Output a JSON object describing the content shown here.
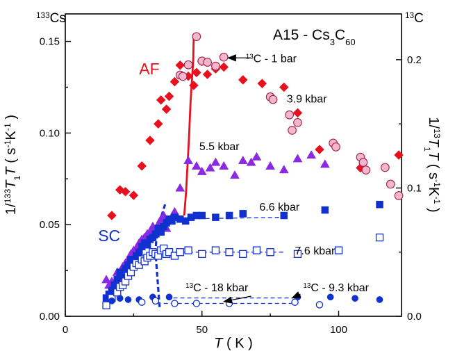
{
  "chart_data": {
    "type": "scatter",
    "title": "A15 - Cs3C60",
    "left_axis_heading": "133Cs",
    "right_axis_heading": "13C",
    "xlabel": "T ( K )",
    "ylabel_left": "1/133T1T ( s-1K-1 )",
    "ylabel_right": "1/13T1T ( s-1K-1 )",
    "xlim": [
      0,
      123
    ],
    "ylim_left": [
      0,
      0.165
    ],
    "ylim_right": [
      0,
      0.2357
    ],
    "x_ticks": [
      0,
      50,
      100
    ],
    "y_left_ticks": [
      0.0,
      0.05,
      0.1,
      0.15
    ],
    "y_left_tick_labels": [
      "0.00",
      "0.05",
      "0.10",
      "0.15"
    ],
    "y_right_ticks": [
      0.0,
      0.1,
      0.2
    ],
    "y_right_tick_labels": [
      "0.0",
      "0.1",
      "0.2"
    ],
    "region_labels": [
      {
        "text": "AF",
        "color": "#e8101e",
        "x": 27,
        "y": 0.132
      },
      {
        "text": "SC",
        "color": "#1030d0",
        "x": 12,
        "y": 0.041
      }
    ],
    "annotations": [
      {
        "text": "3.9 kbar",
        "x": 81,
        "y": 0.119
      },
      {
        "text": "5.5 kbar",
        "x": 49,
        "y": 0.093
      },
      {
        "text": "6.6 kbar",
        "x": 71,
        "y": 0.06
      },
      {
        "text": "7.6 kbar",
        "x": 84,
        "y": 0.036
      },
      {
        "text": "13C - 1 bar",
        "x": 66,
        "y": 0.141
      },
      {
        "text": "13C - 18 kbar",
        "x": 44,
        "y": 0.016
      },
      {
        "text": "13C - 9.3 kbar",
        "x": 87,
        "y": 0.016
      }
    ],
    "series": [
      {
        "name": "3.9 kbar",
        "axis": "left",
        "marker": "diamond",
        "filled": true,
        "color": "#e8101e",
        "x": [
          17,
          20,
          22,
          25,
          28,
          31,
          34,
          35,
          37,
          38,
          40,
          42,
          45,
          47,
          48,
          50,
          52,
          55,
          58,
          65,
          72,
          80,
          85,
          93,
          108,
          122
        ],
        "y": [
          0.055,
          0.069,
          0.068,
          0.066,
          0.082,
          0.096,
          0.105,
          0.118,
          0.113,
          0.12,
          0.128,
          0.137,
          0.131,
          0.126,
          0.133,
          0.139,
          0.132,
          0.135,
          0.136,
          0.129,
          0.127,
          0.125,
          0.111,
          0.091,
          0.081,
          0.088
        ]
      },
      {
        "name": "5.5 kbar",
        "axis": "left",
        "marker": "triangle",
        "filled": true,
        "color": "#8a2be2",
        "x": [
          15,
          16,
          17,
          18,
          19,
          20,
          21,
          22,
          23,
          24,
          25,
          26,
          27,
          28,
          29,
          30,
          31,
          32,
          33,
          34,
          35,
          36,
          37,
          38,
          40,
          42,
          45,
          48,
          50,
          53,
          55,
          58,
          62,
          65,
          68,
          70,
          75,
          80,
          85,
          90,
          95
        ],
        "y": [
          0.02,
          0.017,
          0.019,
          0.018,
          0.024,
          0.021,
          0.027,
          0.029,
          0.031,
          0.034,
          0.036,
          0.037,
          0.04,
          0.042,
          0.043,
          0.045,
          0.046,
          0.049,
          0.045,
          0.05,
          0.053,
          0.055,
          0.048,
          0.052,
          0.057,
          0.07,
          0.085,
          0.082,
          0.079,
          0.081,
          0.084,
          0.082,
          0.077,
          0.085,
          0.084,
          0.087,
          0.082,
          0.08,
          0.086,
          0.088,
          0.083
        ]
      },
      {
        "name": "6.6 kbar",
        "axis": "left",
        "marker": "square",
        "filled": true,
        "color": "#1030d0",
        "x": [
          15,
          16,
          17,
          18,
          19,
          20,
          21,
          22,
          23,
          24,
          25,
          26,
          27,
          28,
          29,
          30,
          31,
          32,
          33,
          34,
          35,
          36,
          37,
          38,
          39,
          40,
          42,
          44,
          46,
          48,
          50,
          55,
          60,
          65,
          80,
          95,
          115
        ],
        "y": [
          0.01,
          0.012,
          0.014,
          0.017,
          0.02,
          0.024,
          0.022,
          0.026,
          0.028,
          0.031,
          0.03,
          0.033,
          0.035,
          0.038,
          0.04,
          0.039,
          0.042,
          0.043,
          0.045,
          0.048,
          0.046,
          0.049,
          0.051,
          0.053,
          0.052,
          0.054,
          0.053,
          0.052,
          0.054,
          0.055,
          0.055,
          0.054,
          0.055,
          0.056,
          0.055,
          0.058,
          0.061
        ]
      },
      {
        "name": "7.6 kbar",
        "axis": "left",
        "marker": "square",
        "filled": false,
        "color": "#1030d0",
        "x": [
          15,
          17,
          19,
          20,
          21,
          22,
          23,
          24,
          25,
          26,
          27,
          28,
          29,
          30,
          31,
          32,
          33,
          34,
          35,
          36,
          37,
          38,
          40,
          42,
          45,
          50,
          55,
          60,
          65,
          70,
          75,
          85,
          100,
          115
        ],
        "y": [
          0.006,
          0.01,
          0.013,
          0.016,
          0.017,
          0.019,
          0.022,
          0.024,
          0.027,
          0.029,
          0.028,
          0.031,
          0.03,
          0.032,
          0.033,
          0.035,
          0.034,
          0.033,
          0.036,
          0.037,
          0.034,
          0.035,
          0.033,
          0.035,
          0.036,
          0.034,
          0.036,
          0.035,
          0.034,
          0.036,
          0.035,
          0.034,
          0.036,
          0.043
        ]
      },
      {
        "name": "13C - 1 bar",
        "axis": "right",
        "marker": "circle",
        "filled": true,
        "color": "#f4b6cc",
        "x": [
          42,
          43,
          45,
          48,
          50,
          52,
          55,
          58,
          75,
          76,
          82,
          83,
          85,
          98,
          99,
          108,
          109,
          110,
          117,
          119,
          122
        ],
        "y": [
          0.188,
          0.187,
          0.196,
          0.218,
          0.199,
          0.198,
          0.195,
          0.202,
          0.171,
          0.169,
          0.157,
          0.145,
          0.151,
          0.135,
          0.132,
          0.124,
          0.12,
          0.114,
          0.116,
          0.103,
          0.094
        ]
      },
      {
        "name": "13C - 9.3 kbar",
        "axis": "right",
        "marker": "circle",
        "filled": true,
        "color": "#1030d0",
        "x": [
          17,
          20,
          23,
          27,
          32,
          38,
          85,
          97,
          106,
          115
        ],
        "y": [
          0.012,
          0.014,
          0.013,
          0.013,
          0.015,
          0.015,
          0.015,
          0.015,
          0.014,
          0.013
        ]
      },
      {
        "name": "13C - 18 kbar",
        "axis": "right",
        "marker": "circle",
        "filled": false,
        "color": "#1030d0",
        "x": [
          28,
          33,
          40,
          48,
          60,
          84,
          93
        ],
        "y": [
          0.011,
          0.012,
          0.01,
          0.01,
          0.01,
          0.011,
          0.009
        ]
      }
    ],
    "lines": [
      {
        "style": "solid",
        "color": "#e8101e",
        "axis": "left",
        "x": [
          43.5,
          44.2,
          44.8,
          45.2,
          45.8,
          46.3,
          46.8,
          47.0
        ],
        "y": [
          0.055,
          0.068,
          0.085,
          0.096,
          0.116,
          0.128,
          0.14,
          0.153
        ]
      },
      {
        "style": "dashed-bold",
        "color": "#1030d0",
        "axis": "left",
        "x": [
          34.5,
          34.0,
          33.5,
          33.0,
          33.3,
          34.2,
          36.5
        ],
        "y": [
          0.005,
          0.015,
          0.025,
          0.035,
          0.042,
          0.05,
          0.061
        ]
      },
      {
        "style": "dashed",
        "color": "#1030d0",
        "axis": "left",
        "x": [
          36,
          80
        ],
        "y": [
          0.053,
          0.054
        ]
      },
      {
        "style": "dashed",
        "color": "#1030d0",
        "axis": "left",
        "x": [
          35,
          80
        ],
        "y": [
          0.035,
          0.035
        ]
      },
      {
        "style": "dashed",
        "color": "#1030d0",
        "axis": "left",
        "x": [
          37,
          86
        ],
        "y": [
          0.01,
          0.01
        ]
      },
      {
        "style": "dashed",
        "color": "#1030d0",
        "axis": "left",
        "x": [
          36,
          84
        ],
        "y": [
          0.007,
          0.007
        ]
      }
    ],
    "arrows": [
      {
        "label_index": 4,
        "from": [
          68,
          0.141
        ],
        "to": [
          59.5,
          0.141
        ]
      },
      {
        "label_index": 5,
        "from": [
          68,
          0.011
        ],
        "to": [
          58,
          0.008
        ]
      },
      {
        "label_index": 6,
        "from": [
          86,
          0.012
        ],
        "to": [
          83,
          0.01
        ]
      }
    ]
  }
}
